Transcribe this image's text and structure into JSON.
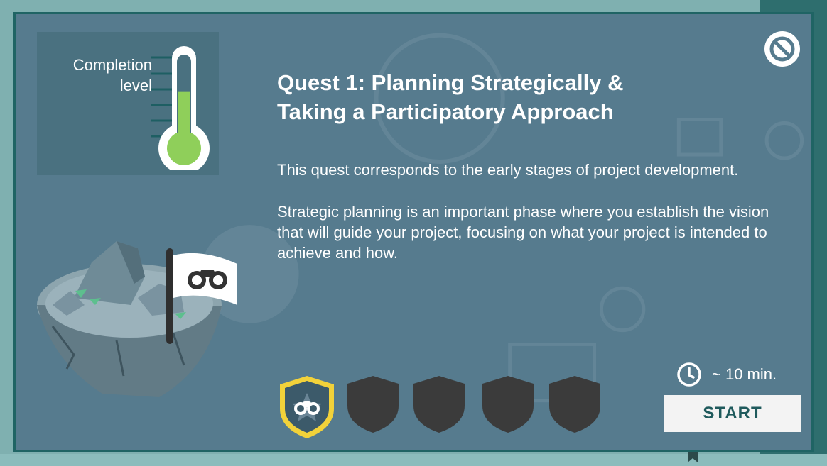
{
  "quest": {
    "title_line1": "Quest 1: Planning Strategically &",
    "title_line2": "Taking a Participatory Approach",
    "description_1": "This quest corresponds to the early stages of project development.",
    "description_2": "Strategic planning is an important phase where you establish the vision that will guide your project, focusing on what your project is intended to achieve and how."
  },
  "completion": {
    "label_line1": "Completion",
    "label_line2": "level",
    "fill_fraction": 0.62
  },
  "duration": "~ 10 min.",
  "start_label": "START",
  "badges": [
    {
      "state": "earned",
      "icon": "binoculars-icon"
    },
    {
      "state": "locked"
    },
    {
      "state": "locked"
    },
    {
      "state": "locked"
    },
    {
      "state": "locked"
    }
  ],
  "icons": {
    "close": "no-entry-icon",
    "clock": "clock-icon",
    "flag": "binoculars-icon"
  },
  "colors": {
    "dialog_bg": "#567b8e",
    "border": "#1f6464",
    "thermo_fill": "#8fcf5a",
    "badge_gold": "#f2d23a",
    "badge_locked": "#3b3b3b",
    "start_text": "#1f5a5c"
  }
}
